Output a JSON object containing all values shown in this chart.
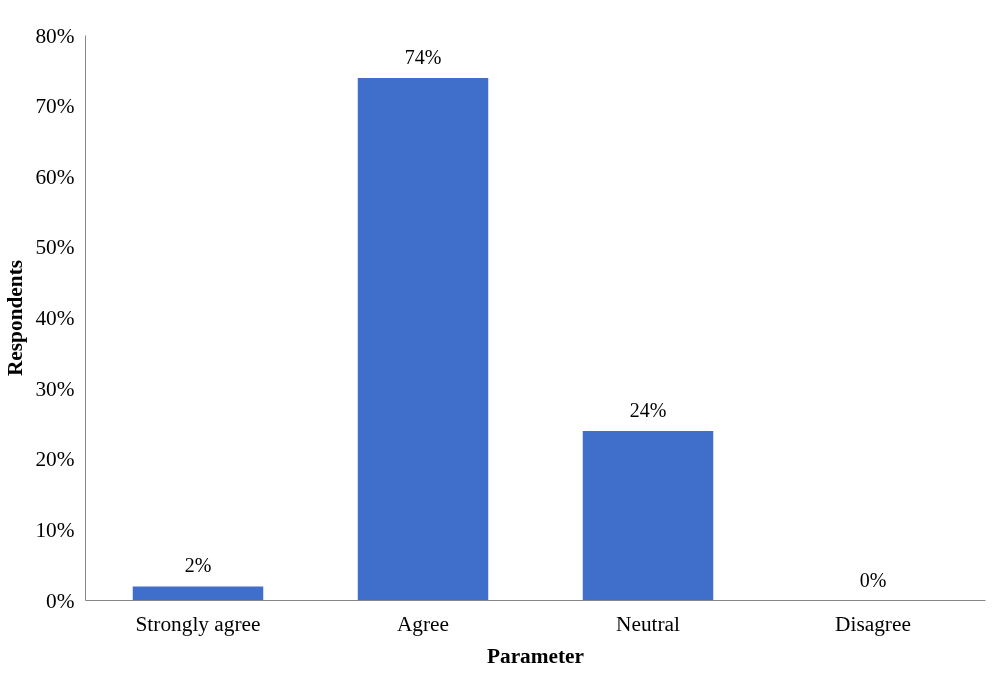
{
  "chart_data": {
    "type": "bar",
    "xlabel": "Parameter",
    "ylabel": "Respondents",
    "categories": [
      "Strongly agree",
      "Agree",
      "Neutral",
      "Disagree"
    ],
    "values": [
      2,
      74,
      24,
      0
    ],
    "value_labels": [
      "2%",
      "74%",
      "24%",
      "0%"
    ],
    "color": "#3f6fca",
    "ylim": [
      0,
      80
    ],
    "yticks": [
      {
        "value": 0,
        "label": "0%"
      },
      {
        "value": 10,
        "label": "10%"
      },
      {
        "value": 20,
        "label": "20%"
      },
      {
        "value": 30,
        "label": "30%"
      },
      {
        "value": 40,
        "label": "40%"
      },
      {
        "value": 50,
        "label": "50%"
      },
      {
        "value": 60,
        "label": "60%"
      },
      {
        "value": 70,
        "label": "70%"
      },
      {
        "value": 80,
        "label": "80%"
      }
    ],
    "grid": false
  }
}
